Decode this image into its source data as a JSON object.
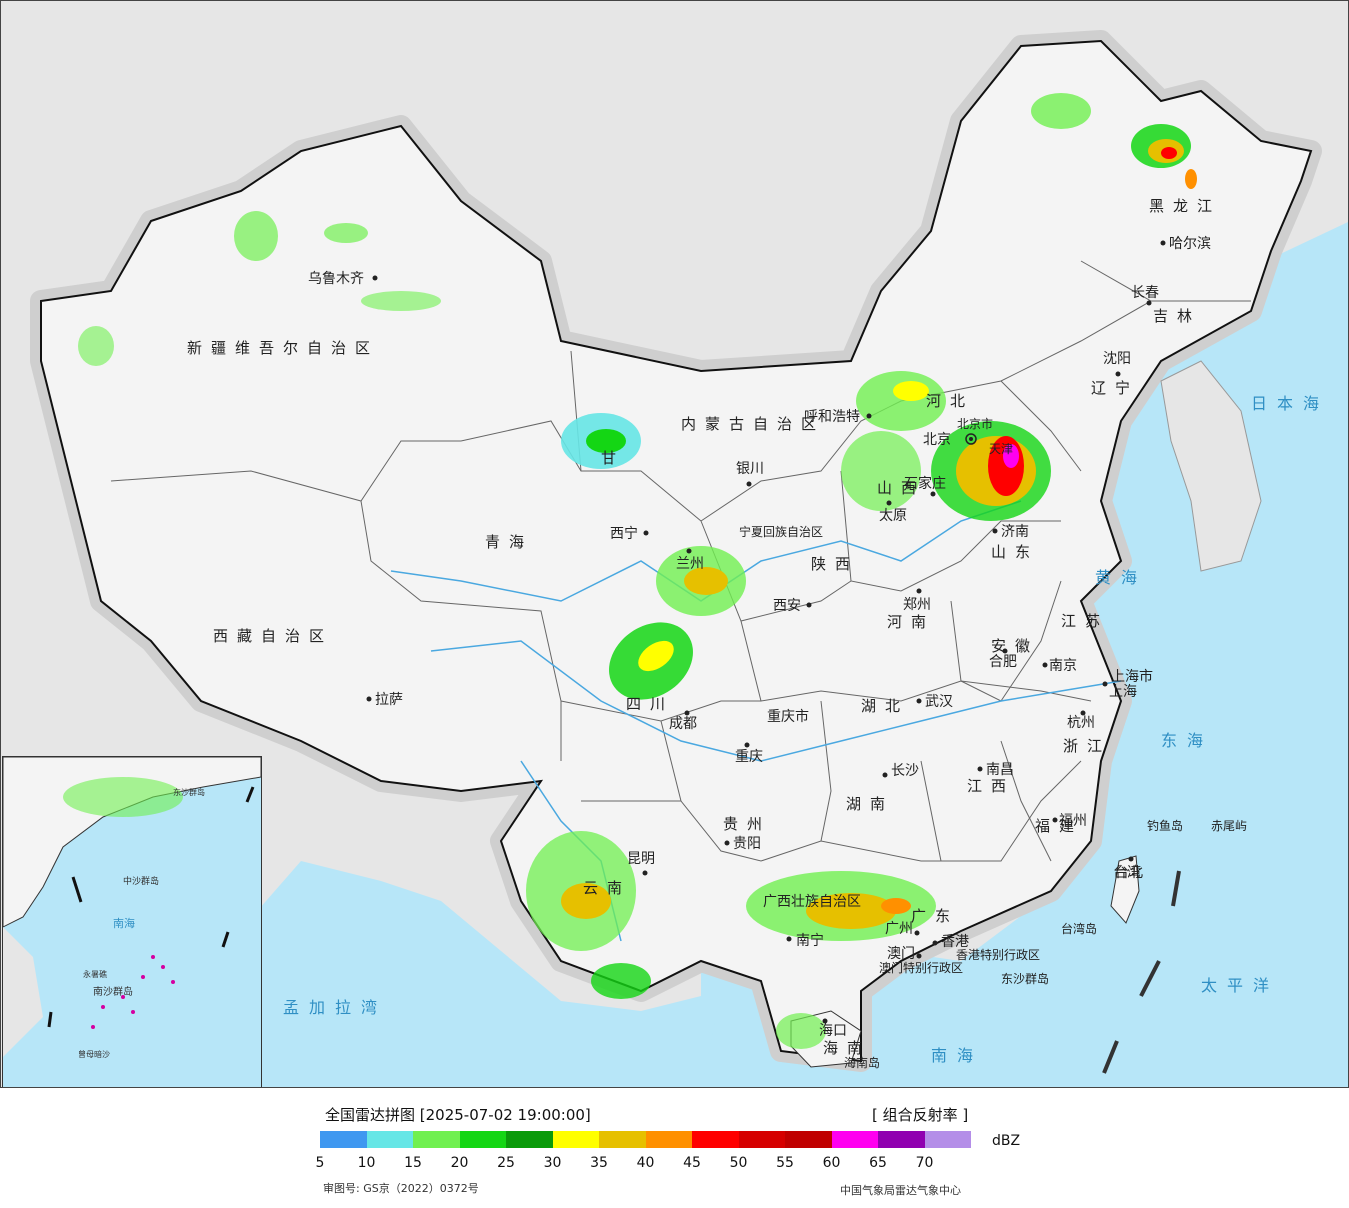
{
  "legend": {
    "title": "全国雷达拼图 [2025-07-02 19:00:00]",
    "product": "[ 组合反射率 ]",
    "unit": "dBZ",
    "review_number": "审图号: GS京（2022）0372号",
    "credit": "中国气象局雷达气象中心",
    "ticks": [
      "5",
      "10",
      "15",
      "20",
      "25",
      "30",
      "35",
      "40",
      "45",
      "50",
      "55",
      "60",
      "65",
      "70"
    ],
    "colors": [
      "#3f98f0",
      "#66e6e6",
      "#70f050",
      "#14d614",
      "#0a9a0a",
      "#ffff00",
      "#e6c000",
      "#ff9000",
      "#ff0000",
      "#d60000",
      "#c00000",
      "#ff00f0",
      "#9000b0",
      "#b48ee8"
    ]
  },
  "provinces": [
    {
      "name": "新疆维吾尔自治区"
    },
    {
      "name": "西藏自治区"
    },
    {
      "name": "青海"
    },
    {
      "name": "甘"
    },
    {
      "name": "内蒙古自治区"
    },
    {
      "name": "黑龙江"
    },
    {
      "name": "吉林"
    },
    {
      "name": "辽宁"
    },
    {
      "name": "河北"
    },
    {
      "name": "山西"
    },
    {
      "name": "山东"
    },
    {
      "name": "河南"
    },
    {
      "name": "陕西"
    },
    {
      "name": "四川"
    },
    {
      "name": "湖北"
    },
    {
      "name": "安徽"
    },
    {
      "name": "江苏"
    },
    {
      "name": "浙江"
    },
    {
      "name": "江西"
    },
    {
      "name": "湖南"
    },
    {
      "name": "贵州"
    },
    {
      "name": "云南"
    },
    {
      "name": "福建"
    },
    {
      "name": "广西壮族自治区"
    },
    {
      "name": "广东"
    },
    {
      "name": "海南"
    },
    {
      "name": "台湾"
    },
    {
      "name": "重庆市"
    },
    {
      "name": "上海市"
    },
    {
      "name": "北京市"
    },
    {
      "name": "天津"
    },
    {
      "name": "宁夏回族自治区"
    },
    {
      "name": "香港特别行政区"
    },
    {
      "name": "澳门特别行政区"
    }
  ],
  "cities": [
    {
      "name": "乌鲁木齐"
    },
    {
      "name": "拉萨"
    },
    {
      "name": "西宁"
    },
    {
      "name": "兰州"
    },
    {
      "name": "银川"
    },
    {
      "name": "呼和浩特"
    },
    {
      "name": "哈尔滨"
    },
    {
      "name": "长春"
    },
    {
      "name": "沈阳"
    },
    {
      "name": "北京"
    },
    {
      "name": "石家庄"
    },
    {
      "name": "太原"
    },
    {
      "name": "济南"
    },
    {
      "name": "郑州"
    },
    {
      "name": "西安"
    },
    {
      "name": "成都"
    },
    {
      "name": "重庆"
    },
    {
      "name": "武汉"
    },
    {
      "name": "合肥"
    },
    {
      "name": "南京"
    },
    {
      "name": "上海"
    },
    {
      "name": "杭州"
    },
    {
      "name": "南昌"
    },
    {
      "name": "长沙"
    },
    {
      "name": "贵阳"
    },
    {
      "name": "昆明"
    },
    {
      "name": "福州"
    },
    {
      "name": "南宁"
    },
    {
      "name": "广州"
    },
    {
      "name": "香港"
    },
    {
      "name": "澳门"
    },
    {
      "name": "海口"
    },
    {
      "name": "台北"
    }
  ],
  "seas": [
    {
      "name": "日本海"
    },
    {
      "name": "黄海"
    },
    {
      "name": "东海"
    },
    {
      "name": "太平洋"
    },
    {
      "name": "南海"
    },
    {
      "name": "孟加拉湾"
    }
  ],
  "islands": [
    {
      "name": "钓鱼岛"
    },
    {
      "name": "赤尾屿"
    },
    {
      "name": "东沙群岛"
    },
    {
      "name": "海南岛"
    },
    {
      "name": "台湾岛"
    }
  ],
  "inset": {
    "labels": [
      "中沙群岛",
      "南海",
      "永暑礁",
      "南沙群岛",
      "曾母暗沙",
      "东沙群岛"
    ]
  }
}
